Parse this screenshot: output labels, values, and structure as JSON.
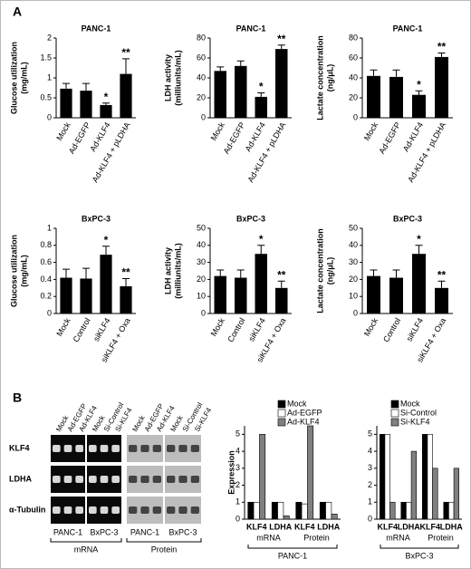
{
  "panel_labels": [
    "A",
    "B"
  ],
  "chart_data": [
    {
      "type": "bar",
      "title": "PANC-1",
      "ylabel": [
        "Glucose utilization",
        "(mg/mL)"
      ],
      "categories": [
        "Mock",
        "Ad-EGFP",
        "Ad-KLF4",
        "Ad-KLF4 + pLDHA"
      ],
      "values": [
        0.73,
        0.68,
        0.32,
        1.1
      ],
      "errors": [
        0.13,
        0.18,
        0.05,
        0.38
      ],
      "annotations": [
        null,
        null,
        "*",
        "**"
      ],
      "color": "#000000",
      "ylim": [
        0,
        2
      ],
      "yticks": [
        0,
        0.5,
        1,
        1.5,
        2
      ]
    },
    {
      "type": "bar",
      "title": "PANC-1",
      "ylabel": [
        "LDH activity",
        "(milliunits/mL)"
      ],
      "categories": [
        "Mock",
        "Ad-EGFP",
        "Ad-KLF4",
        "Ad-KLF4 + pLDHA"
      ],
      "values": [
        47,
        52,
        21,
        69
      ],
      "errors": [
        4,
        5,
        4,
        4
      ],
      "annotations": [
        null,
        null,
        "*",
        "**"
      ],
      "color": "#000000",
      "ylim": [
        0,
        80
      ],
      "yticks": [
        0,
        20,
        40,
        60,
        80
      ]
    },
    {
      "type": "bar",
      "title": "PANC-1",
      "ylabel": [
        "Lactate concentration",
        "(ng/μL)"
      ],
      "categories": [
        "Mock",
        "Ad-EGFP",
        "Ad-KLF4",
        "Ad-KLF4 + pLDHA"
      ],
      "values": [
        42,
        41,
        23,
        61
      ],
      "errors": [
        6,
        7,
        4,
        4
      ],
      "annotations": [
        null,
        null,
        "*",
        "**"
      ],
      "color": "#000000",
      "ylim": [
        0,
        80
      ],
      "yticks": [
        0,
        20,
        40,
        60,
        80
      ]
    },
    {
      "type": "bar",
      "title": "BxPC-3",
      "ylabel": [
        "Glucose utilization",
        "(mg/mL)"
      ],
      "categories": [
        "Mock",
        "Control",
        "siKLF4",
        "siKLF4 + Oxa"
      ],
      "values": [
        0.42,
        0.41,
        0.69,
        0.32
      ],
      "errors": [
        0.1,
        0.12,
        0.1,
        0.09
      ],
      "annotations": [
        null,
        null,
        "*",
        "**"
      ],
      "color": "#000000",
      "ylim": [
        0,
        1
      ],
      "yticks": [
        0,
        0.2,
        0.4,
        0.6,
        0.8,
        1
      ]
    },
    {
      "type": "bar",
      "title": "BxPC-3",
      "ylabel": [
        "LDH activity",
        "(milliunits/mL)"
      ],
      "categories": [
        "Mock",
        "Control",
        "siKLF4",
        "siKLF4 + Oxa"
      ],
      "values": [
        22,
        21,
        35,
        15
      ],
      "errors": [
        3.5,
        4.5,
        5,
        4
      ],
      "annotations": [
        null,
        null,
        "*",
        "**"
      ],
      "color": "#000000",
      "ylim": [
        0,
        50
      ],
      "yticks": [
        0,
        10,
        20,
        30,
        40,
        50
      ]
    },
    {
      "type": "bar",
      "title": "BxPC-3",
      "ylabel": [
        "Lactate concentration",
        "(ng/μL)"
      ],
      "categories": [
        "Mock",
        "Control",
        "siKLF4",
        "siKLF4 + Oxa"
      ],
      "values": [
        22,
        21,
        35,
        15
      ],
      "errors": [
        3.5,
        4.5,
        5,
        4
      ],
      "annotations": [
        null,
        null,
        "*",
        "**"
      ],
      "color": "#000000",
      "ylim": [
        0,
        50
      ],
      "yticks": [
        0,
        10,
        20,
        30,
        40,
        50
      ]
    },
    {
      "type": "grouped_bar",
      "ylabel": [
        "Expression"
      ],
      "categories": [
        "KLF4",
        "LDHA",
        "KLF4",
        "LDHA"
      ],
      "groups": [
        "mRNA",
        "Protein"
      ],
      "group_title": "PANC-1",
      "series": [
        {
          "name": "Mock",
          "color": "#000000",
          "values": [
            1,
            1,
            1,
            1
          ]
        },
        {
          "name": "Ad-EGFP",
          "color": "#ffffff",
          "values": [
            1,
            1,
            0.9,
            1
          ]
        },
        {
          "name": "Ad-KLF4",
          "color": "#808080",
          "values": [
            5,
            0.2,
            5.5,
            0.3
          ]
        }
      ],
      "ylim": [
        0,
        5.5
      ],
      "yticks": [
        0,
        1,
        2,
        3,
        4,
        5
      ]
    },
    {
      "type": "grouped_bar",
      "categories": [
        "KLF4",
        "LDHA",
        "KLF4",
        "LDHA"
      ],
      "groups": [
        "mRNA",
        "Protein"
      ],
      "group_title": "BxPC-3",
      "series": [
        {
          "name": "Mock",
          "color": "#000000",
          "values": [
            5,
            1,
            5,
            1
          ]
        },
        {
          "name": "Si-Control",
          "color": "#ffffff",
          "values": [
            5,
            1,
            5,
            1
          ]
        },
        {
          "name": "Si-KLF4",
          "color": "#808080",
          "values": [
            1,
            4,
            3,
            3
          ]
        }
      ],
      "ylim": [
        0,
        5.5
      ],
      "yticks": [
        0,
        1,
        2,
        3,
        4,
        5
      ]
    }
  ],
  "blot": {
    "rows": [
      "KLF4",
      "LDHA",
      "α-Tubulin"
    ],
    "lanes": [
      [
        "Mock",
        "Ad-EGFP",
        "Ad-KLF4"
      ],
      [
        "Mock",
        "Si-Control",
        "Si-KLF4"
      ],
      [
        "Mock",
        "Ad-EGFP",
        "Ad-KLF4"
      ],
      [
        "Mock",
        "Si-Control",
        "Si-KLF4"
      ]
    ],
    "cell_lines": [
      "PANC-1",
      "BxPC-3",
      "PANC-1",
      "BxPC-3"
    ],
    "assays": [
      "mRNA",
      "Protein"
    ]
  }
}
